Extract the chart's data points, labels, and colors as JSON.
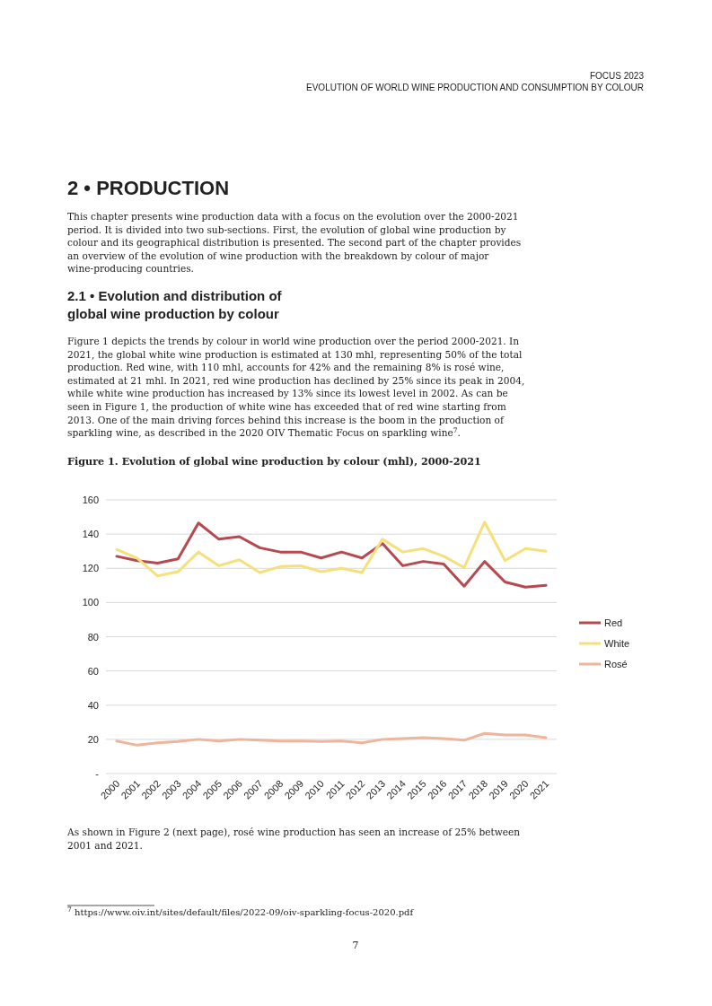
{
  "chart_data": {
    "type": "line",
    "title": "Figure 1. Evolution of global wine production by colour (mhl), 2000-2021",
    "categories": [
      "2000",
      "2001",
      "2002",
      "2003",
      "2004",
      "2005",
      "2006",
      "2007",
      "2008",
      "2009",
      "2010",
      "2011",
      "2012",
      "2013",
      "2014",
      "2015",
      "2016",
      "2017",
      "2018",
      "2019",
      "2020",
      "2021"
    ],
    "series": [
      {
        "name": "Red",
        "color": "#b5494f",
        "values": [
          127,
          124.5,
          123,
          125.5,
          146.5,
          137,
          138.5,
          132,
          129.5,
          129.5,
          126,
          129.5,
          126,
          134.5,
          121.5,
          124,
          122.5,
          109.5,
          124,
          112,
          109,
          110
        ]
      },
      {
        "name": "White",
        "color": "#f5e07c",
        "values": [
          131,
          126,
          115.5,
          118,
          129.5,
          121.5,
          125,
          117.5,
          121,
          121.5,
          118,
          120,
          117.5,
          137,
          129.5,
          131.5,
          127,
          120.5,
          147,
          124.5,
          131.5,
          130
        ]
      },
      {
        "name": "Rosé",
        "color": "#efb49c",
        "values": [
          19,
          16.6,
          18,
          18.8,
          20,
          19,
          20,
          19.5,
          19,
          19,
          18.7,
          19,
          18,
          20,
          20.5,
          21,
          20.5,
          19.5,
          23.5,
          22.5,
          22.5,
          21
        ]
      }
    ],
    "ylim": [
      0,
      160
    ],
    "yticks": [
      {
        "value": 0,
        "label": "-"
      },
      20,
      40,
      60,
      80,
      100,
      120,
      140,
      160
    ],
    "grid": "y",
    "legend": "right",
    "marker": "none",
    "line_style": "solid",
    "annotations": [
      "FOCUS 2023",
      "EVOLUTION OF WORLD WINE PRODUCTION AND CONSUMPTION BY COLOUR",
      "2 • PRODUCTION",
      "This chapter presents wine production data with a focus on the evolution over the 2000-2021 period. It is divided into two sub-sections. First, the evolution of global wine production by colour and its geographical distribution is presented. The second part of the chapter provides an overview of the evolution of wine production with the breakdown by colour of major wine-producing countries.",
      "2.1 • Evolution and distribution of global wine production by colour",
      "Figure 1 depicts the trends by colour in world wine production over the period 2000-2021. In 2021, the global white wine production is estimated at 130 mhl, representing 50% of the total production. Red wine, with 110 mhl, accounts for 42% and the remaining 8% is rosé wine, estimated at 21 mhl. In 2021, red wine production has declined by 25% since its peak in 2004, while white wine production has increased by 13% since its lowest level in 2002. As can be seen in Figure 1, the production of white wine has exceeded that of red wine starting from 2013. One of the main driving forces behind this increase is the boom in the production of sparkling wine, as described in the 2020 OIV Thematic Focus on sparkling wine$^{7}$.",
      "As shown in Figure 2 (next page), rosé wine production has seen an increase of 25% between 2001 and 2021.",
      "$^{7}$ https://www.oiv.int/sites/default/files/2022-09/oiv-sparkling-focus-2020.pdf",
      "7"
    ]
  }
}
